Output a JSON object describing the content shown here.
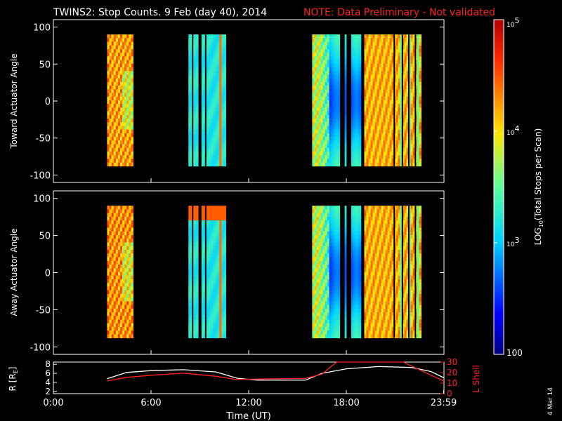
{
  "title_main": "TWINS2: Stop Counts.  9 Feb (day  40), 2014",
  "title_note": "NOTE: Data Preliminary - Not validated",
  "colors": {
    "note": "#ff2020",
    "text": "#ffffff",
    "rshell": "#ffffff",
    "lshell": "#ff2020"
  },
  "stamp": "4 Mar 14",
  "chart_data": [
    {
      "type": "heatmap",
      "ylabel": "Toward Actuator Angle",
      "ylim": [
        -110,
        110
      ],
      "yticks": [
        "100",
        "50",
        "0",
        "-50",
        "-100"
      ],
      "angle_range": [
        -88,
        90
      ],
      "xlim_hours": [
        0,
        24
      ],
      "data_intervals_hours": [
        [
          3.3,
          4.9
        ],
        [
          8.3,
          8.5
        ],
        [
          8.6,
          8.9
        ],
        [
          9.1,
          9.3
        ],
        [
          9.4,
          10.6
        ],
        [
          15.9,
          17.6
        ],
        [
          17.9,
          18.0
        ],
        [
          18.3,
          18.9
        ],
        [
          19.1,
          22.6
        ]
      ],
      "stripe_gaps_hours": [
        20.9,
        21.4,
        21.8,
        22.2
      ]
    },
    {
      "type": "heatmap",
      "ylabel": "Away Actuator Angle",
      "ylim": [
        -110,
        110
      ],
      "yticks": [
        "100",
        "50",
        "0",
        "-50",
        "-100"
      ],
      "angle_range": [
        -88,
        90
      ],
      "xlim_hours": [
        0,
        24
      ],
      "data_intervals_hours": [
        [
          3.3,
          4.9
        ],
        [
          8.3,
          8.5
        ],
        [
          8.6,
          8.9
        ],
        [
          9.1,
          9.3
        ],
        [
          9.4,
          10.6
        ],
        [
          15.9,
          17.6
        ],
        [
          17.9,
          18.0
        ],
        [
          18.3,
          18.9
        ],
        [
          19.1,
          22.6
        ]
      ],
      "stripe_gaps_hours": [
        20.9,
        21.4,
        21.8,
        22.2
      ]
    },
    {
      "type": "line",
      "xlabel": "Time (UT)",
      "xticks": [
        "0:00",
        "6:00",
        "12:00",
        "18:00",
        "23:59"
      ],
      "xtick_hours": [
        0,
        6,
        12,
        18,
        23.98
      ],
      "ylabel_left": "R [R",
      "ylabel_left_sub": "E",
      "ylabel_left_close": "]",
      "yticks_left": [
        "2",
        "4",
        "6",
        "8"
      ],
      "ylim_left": [
        1.5,
        8.5
      ],
      "ylabel_right": "L Shell",
      "yticks_right": [
        "0",
        "10",
        "20",
        "30"
      ],
      "ylim_right": [
        0,
        30
      ],
      "series": [
        {
          "axis": "left",
          "x": [
            3.3,
            4.5,
            6.0,
            8.0,
            10.0,
            11.3,
            12.5,
            14.0,
            15.5,
            16.5,
            18.0,
            20.0,
            22.0,
            23.2,
            24.0
          ],
          "y": [
            4.8,
            6.2,
            6.6,
            6.8,
            6.3,
            4.9,
            4.5,
            4.5,
            4.5,
            6.0,
            7.0,
            7.5,
            7.3,
            6.4,
            5.0
          ]
        },
        {
          "axis": "right",
          "x": [
            3.3,
            4.5,
            6.0,
            8.0,
            10.0,
            11.2,
            12.5,
            14.0,
            15.5,
            16.5,
            17.4,
            21.5,
            23.2,
            24.0
          ],
          "y": [
            12,
            15.5,
            17.5,
            19.5,
            16.5,
            13.5,
            13.8,
            14.2,
            14.5,
            18.5,
            30,
            30,
            17.5,
            12
          ]
        }
      ]
    }
  ],
  "colorbar": {
    "label": "LOG",
    "label_sub": "10",
    "label_rest": "(Total Stops per Scan)",
    "ticks": [
      {
        "base": "10",
        "exp": "5",
        "value": 100000
      },
      {
        "base": "10",
        "exp": "4",
        "value": 10000
      },
      {
        "base": "10",
        "exp": "3",
        "value": 1000
      },
      {
        "base": "100",
        "exp": "",
        "value": 100
      }
    ],
    "range": [
      100,
      100000
    ]
  }
}
